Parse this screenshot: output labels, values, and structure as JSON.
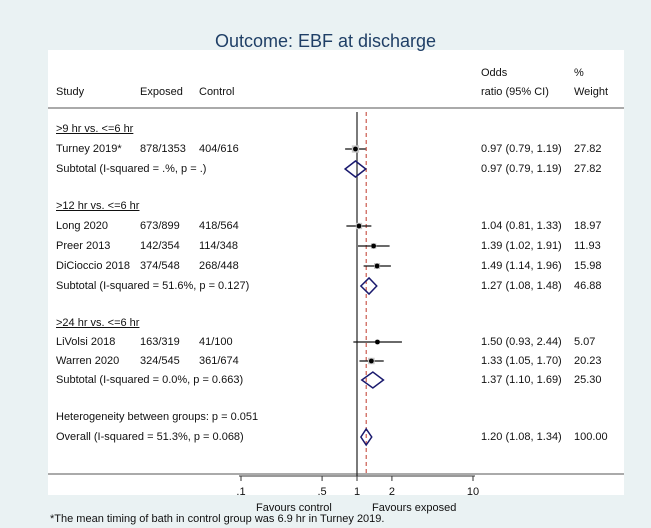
{
  "chart_data": {
    "type": "forest",
    "title": "Outcome: EBF at discharge",
    "x_scale": "log",
    "x_ticks": [
      ".1",
      ".5",
      "1",
      "2",
      "10"
    ],
    "x_tick_values": [
      0.1,
      0.5,
      1,
      2,
      10
    ],
    "xlabel_left": "Favours control",
    "xlabel_right": "Favours exposed",
    "null_line": 1,
    "overall_line": 1.2,
    "columns": {
      "study": "Study",
      "exposed": "Exposed",
      "control": "Control",
      "or_line1": "Odds",
      "or_line2": "ratio (95% CI)",
      "weight_line1": "%",
      "weight_line2": "Weight"
    },
    "groups": [
      {
        "label": ">9 hr vs. <=6 hr",
        "studies": [
          {
            "study": "Turney 2019*",
            "exposed": "878/1353",
            "control": "404/616",
            "or": 0.97,
            "lo": 0.79,
            "hi": 1.19,
            "ci_text": "0.97 (0.79, 1.19)",
            "weight": "27.82"
          }
        ],
        "subtotal": {
          "label": "Subtotal  (I-squared = .%, p = .)",
          "or": 0.97,
          "lo": 0.79,
          "hi": 1.19,
          "ci_text": "0.97 (0.79, 1.19)",
          "weight": "27.82"
        }
      },
      {
        "label": ">12 hr vs. <=6 hr",
        "studies": [
          {
            "study": "Long 2020",
            "exposed": "673/899",
            "control": "418/564",
            "or": 1.04,
            "lo": 0.81,
            "hi": 1.33,
            "ci_text": "1.04 (0.81, 1.33)",
            "weight": "18.97"
          },
          {
            "study": "Preer 2013",
            "exposed": "142/354",
            "control": "114/348",
            "or": 1.39,
            "lo": 1.02,
            "hi": 1.91,
            "ci_text": "1.39 (1.02, 1.91)",
            "weight": "11.93"
          },
          {
            "study": "DiCioccio 2018",
            "exposed": "374/548",
            "control": "268/448",
            "or": 1.49,
            "lo": 1.14,
            "hi": 1.96,
            "ci_text": "1.49 (1.14, 1.96)",
            "weight": "15.98"
          }
        ],
        "subtotal": {
          "label": "Subtotal  (I-squared = 51.6%, p = 0.127)",
          "or": 1.27,
          "lo": 1.08,
          "hi": 1.48,
          "ci_text": "1.27 (1.08, 1.48)",
          "weight": "46.88"
        }
      },
      {
        "label": ">24 hr vs. <=6 hr",
        "studies": [
          {
            "study": "LiVolsi 2018",
            "exposed": "163/319",
            "control": "41/100",
            "or": 1.5,
            "lo": 0.93,
            "hi": 2.44,
            "ci_text": "1.50 (0.93, 2.44)",
            "weight": "5.07"
          },
          {
            "study": "Warren 2020",
            "exposed": "324/545",
            "control": "361/674",
            "or": 1.33,
            "lo": 1.05,
            "hi": 1.7,
            "ci_text": "1.33 (1.05, 1.70)",
            "weight": "20.23"
          }
        ],
        "subtotal": {
          "label": "Subtotal  (I-squared = 0.0%, p = 0.663)",
          "or": 1.37,
          "lo": 1.1,
          "hi": 1.69,
          "ci_text": "1.37 (1.10, 1.69)",
          "weight": "25.30"
        }
      }
    ],
    "heterogeneity": "Heterogeneity between groups: p = 0.051",
    "overall": {
      "label": "Overall  (I-squared = 51.3%, p = 0.068)",
      "or": 1.2,
      "lo": 1.08,
      "hi": 1.34,
      "ci_text": "1.20 (1.08, 1.34)",
      "weight": "100.00"
    },
    "colors": {
      "diamond": "#1a1a6e",
      "overall_line": "#c0392b",
      "panel": "#ffffff",
      "background": "#eaf2f3"
    }
  },
  "footnote": "*The mean timing of bath in control group was 6.9 hr in Turney 2019."
}
